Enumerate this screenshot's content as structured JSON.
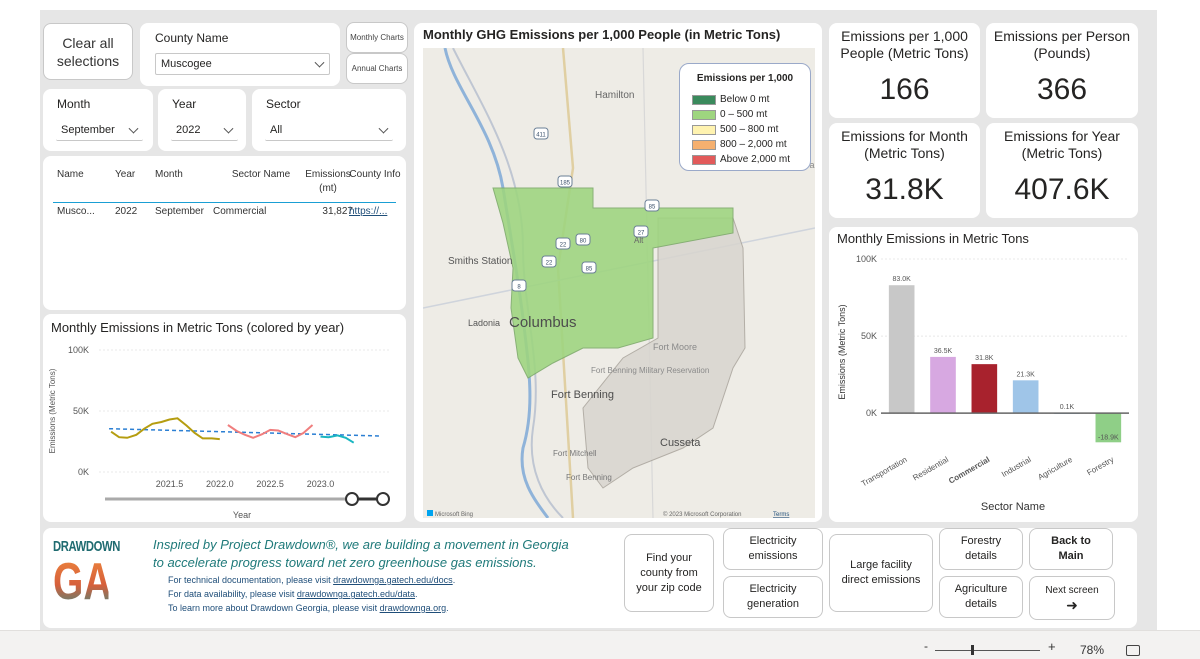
{
  "filters": {
    "clear_label": "Clear all selections",
    "county_label": "County Name",
    "county_value": "Muscogee",
    "monthly_charts": "Monthly Charts",
    "annual_charts": "Annual Charts",
    "month_label": "Month",
    "month_value": "September",
    "year_label": "Year",
    "year_value": "2022",
    "sector_label": "Sector",
    "sector_value": "All"
  },
  "table": {
    "headers": [
      "Name",
      "Year",
      "Month",
      "Sector Name",
      "Emissions (mt)",
      "County Info"
    ],
    "rows": [
      [
        "Musco...",
        "2022",
        "September",
        "Commercial",
        "31,827",
        "https://..."
      ]
    ]
  },
  "map": {
    "title": "Monthly GHG Emissions per 1,000 People (in Metric Tons)",
    "legend_title": "Emissions per 1,000",
    "legend": [
      {
        "label": "Below 0 mt",
        "color": "#3a8a5c"
      },
      {
        "label": "0 – 500 mt",
        "color": "#9ed57f"
      },
      {
        "label": "500 – 800 mt",
        "color": "#fff3b0"
      },
      {
        "label": "800 – 2,000 mt",
        "color": "#f5b06f"
      },
      {
        "label": "Above 2,000 mt",
        "color": "#e25a5a"
      }
    ],
    "places": {
      "hamilton": "Hamilton",
      "smiths": "Smiths Station",
      "ladonia": "Ladonia",
      "columbus": "Columbus",
      "fort_moore": "Fort Moore",
      "fort_benning_res": "Fort Benning Military Reservation",
      "fort_benning": "Fort Benning",
      "fort_mitchell": "Fort Mitchell",
      "fort_benning2": "Fort Benning",
      "cusseta": "Cusseta",
      "alt": "Alt",
      "tal": "Tal"
    },
    "shields": [
      "411",
      "185",
      "85",
      "27",
      "22",
      "80",
      "22",
      "85",
      "8"
    ],
    "bing": "Microsoft Bing",
    "copyright": "© 2023 Microsoft Corporation",
    "terms": "Terms"
  },
  "kpis": {
    "per1000_title": "Emissions per 1,000 People (Metric Tons)",
    "per1000_value": "166",
    "perperson_title": "Emissions per Person (Pounds)",
    "perperson_value": "366",
    "month_title": "Emissions for Month (Metric Tons)",
    "month_value": "31.8K",
    "year_title": "Emissions for Year (Metric Tons)",
    "year_value": "407.6K"
  },
  "chart_data": [
    {
      "type": "line",
      "title": "Monthly Emissions in Metric Tons (colored by year)",
      "xlabel": "Year",
      "ylabel": "Emissions (Metric Tons)",
      "xlim": [
        2020.8,
        2023.7
      ],
      "ylim": [
        0,
        100000
      ],
      "yticks": [
        {
          "v": 0,
          "l": "0K"
        },
        {
          "v": 50000,
          "l": "50K"
        },
        {
          "v": 100000,
          "l": "100K"
        }
      ],
      "xticks": [
        {
          "v": 2021.5,
          "l": "2021.5"
        },
        {
          "v": 2022.0,
          "l": "2022.0"
        },
        {
          "v": 2022.5,
          "l": "2022.5"
        },
        {
          "v": 2023.0,
          "l": "2023.0"
        }
      ],
      "trend": [
        [
          2020.9,
          35500
        ],
        [
          2023.6,
          29500
        ]
      ],
      "series": [
        {
          "color": "#b59d10",
          "points": [
            [
              2020.92,
              33000
            ],
            [
              2021.0,
              28500
            ],
            [
              2021.08,
              28000
            ],
            [
              2021.17,
              30500
            ],
            [
              2021.25,
              35500
            ],
            [
              2021.33,
              39500
            ],
            [
              2021.42,
              41000
            ],
            [
              2021.5,
              43000
            ],
            [
              2021.58,
              44000
            ],
            [
              2021.67,
              38000
            ],
            [
              2021.75,
              32000
            ],
            [
              2021.83,
              27500
            ],
            [
              2021.92,
              27500
            ],
            [
              2022.0,
              27000
            ]
          ]
        },
        {
          "color": "#f07e7e",
          "points": [
            [
              2022.08,
              38500
            ],
            [
              2022.17,
              33500
            ],
            [
              2022.25,
              30500
            ],
            [
              2022.33,
              28000
            ],
            [
              2022.42,
              31000
            ],
            [
              2022.5,
              34500
            ],
            [
              2022.58,
              34000
            ],
            [
              2022.67,
              31000
            ],
            [
              2022.75,
              28500
            ],
            [
              2022.83,
              32000
            ],
            [
              2022.92,
              38500
            ]
          ]
        },
        {
          "color": "#1ab6c1",
          "points": [
            [
              2023.0,
              29000
            ],
            [
              2023.08,
              28500
            ],
            [
              2023.17,
              30000
            ],
            [
              2023.25,
              28000
            ],
            [
              2023.33,
              24000
            ]
          ]
        }
      ]
    },
    {
      "type": "bar",
      "title": "Monthly Emissions in Metric Tons",
      "xlabel": "Sector Name",
      "ylabel": "Emissions (Metric Tons)",
      "ylim": [
        -20000,
        100000
      ],
      "yticks": [
        {
          "v": 0,
          "l": "0K"
        },
        {
          "v": 50000,
          "l": "50K"
        },
        {
          "v": 100000,
          "l": "100K"
        }
      ],
      "categories": [
        "Transportation",
        "Residential",
        "Commercial",
        "Industrial",
        "Agriculture",
        "Forestry"
      ],
      "values": [
        83000,
        36500,
        31800,
        21300,
        100,
        -18900
      ],
      "labels": [
        "83.0K",
        "36.5K",
        "31.8K",
        "21.3K",
        "0.1K",
        "-18.9K"
      ],
      "colors": [
        "#c8c8c8",
        "#d7a8e1",
        "#a8222d",
        "#9fc5e8",
        "#9fc5e8",
        "#8fcf87"
      ],
      "bold_category": "Commercial"
    }
  ],
  "footer": {
    "logo_top": "DRAWDOWN",
    "logo_bottom": "GA",
    "tagline1": "Inspired by Project Drawdown®, we are building a movement in Georgia",
    "tagline2": "to accelerate progress toward net zero greenhouse gas emissions.",
    "doc_prefix": "For technical documentation, please visit ",
    "doc_link": "drawdownga.gatech.edu/docs",
    "data_prefix": "For data availability, please visit ",
    "data_link": "drawdownga.gatech.edu/data",
    "learn_prefix": "To learn more about Drawdown Georgia, please visit ",
    "learn_link": "drawdownga.org",
    "zip_btn": "Find your county from your zip code",
    "elec_emissions": "Electricity emissions",
    "elec_generation": "Electricity generation",
    "large_facility": "Large facility direct emissions",
    "forestry": "Forestry details",
    "agriculture": "Agriculture details",
    "back": "Back to Main",
    "next": "Next screen",
    "next_arrow": "➜"
  },
  "status": {
    "minus": "-",
    "plus": "+",
    "zoom": "78%"
  }
}
